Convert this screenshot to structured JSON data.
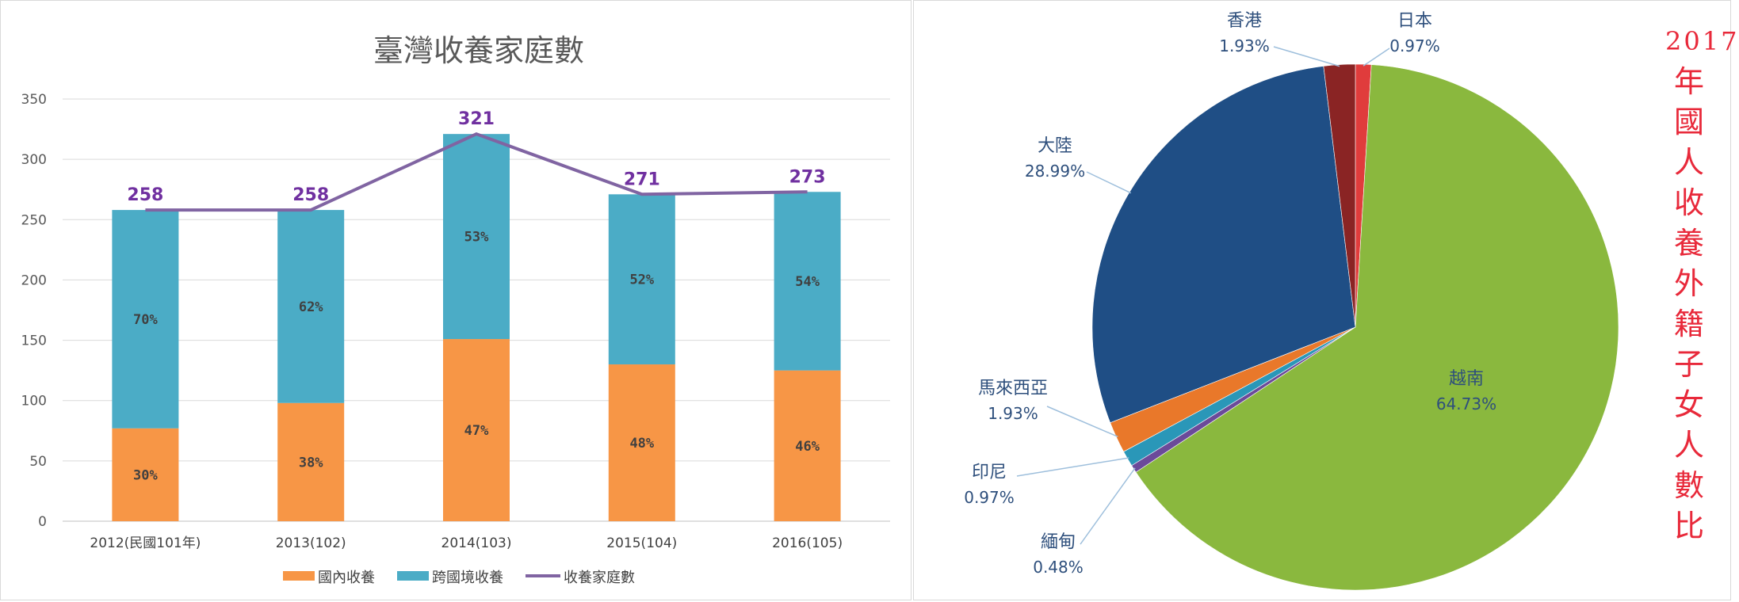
{
  "chart_data": [
    {
      "type": "bar",
      "stacked": true,
      "title": "臺灣收養家庭數",
      "categories": [
        "2012(民國101年)",
        "2013(102)",
        "2014(103)",
        "2015(104)",
        "2016(105)"
      ],
      "series": [
        {
          "name": "國內收養",
          "type": "bar",
          "color": "#f79646",
          "values": [
            77,
            98,
            151,
            130,
            125
          ],
          "labels": [
            "30%",
            "38%",
            "47%",
            "48%",
            "46%"
          ]
        },
        {
          "name": "跨國境收養",
          "type": "bar",
          "color": "#4bacc6",
          "values": [
            181,
            160,
            170,
            141,
            148
          ],
          "labels": [
            "70%",
            "62%",
            "53%",
            "52%",
            "54%"
          ]
        },
        {
          "name": "收養家庭數",
          "type": "line",
          "color": "#8064a2",
          "values": [
            258,
            258,
            321,
            271,
            273
          ],
          "labels": [
            "258",
            "258",
            "321",
            "271",
            "273"
          ]
        }
      ],
      "ylim": [
        0,
        350
      ],
      "yticks": [
        "0",
        "50",
        "100",
        "150",
        "200",
        "250",
        "300",
        "350"
      ],
      "grid": true,
      "legend": "bottom"
    },
    {
      "type": "pie",
      "title": "2017年國人收養外籍子女人數比",
      "slices": [
        {
          "label": "日本",
          "pct": "0.97%",
          "value": 0.97,
          "color": "#e03c3c"
        },
        {
          "label": "越南",
          "pct": "64.73%",
          "value": 64.73,
          "color": "#8ab83e"
        },
        {
          "label": "緬甸",
          "pct": "0.48%",
          "value": 0.48,
          "color": "#6b4a9a"
        },
        {
          "label": "印尼",
          "pct": "0.97%",
          "value": 0.97,
          "color": "#2a97b8"
        },
        {
          "label": "馬來西亞",
          "pct": "1.93%",
          "value": 1.93,
          "color": "#e9782a"
        },
        {
          "label": "大陸",
          "pct": "28.99%",
          "value": 28.99,
          "color": "#1f4e85"
        },
        {
          "label": "香港",
          "pct": "1.93%",
          "value": 1.93,
          "color": "#8a2424"
        }
      ]
    }
  ]
}
